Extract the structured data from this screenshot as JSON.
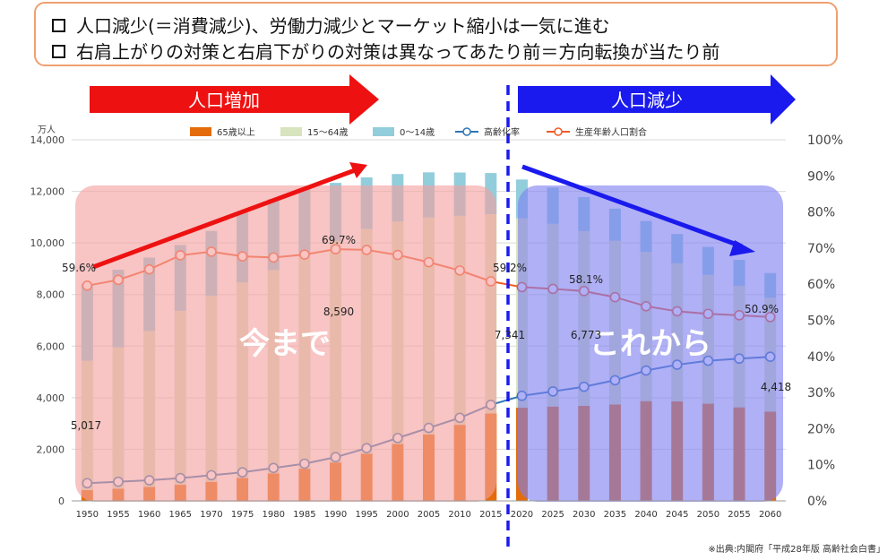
{
  "headline": {
    "line1": "人口減少(＝消費減少)、労働力減少とマーケット縮小は一気に進む",
    "line2": "右肩上がりの対策と右肩下がりの対策は異なってあたり前＝方向転換が当たり前"
  },
  "arrows": {
    "increase_label": "人口増加",
    "decrease_label": "人口減少",
    "increase_color": "#ee1111",
    "decrease_color": "#1a1aee"
  },
  "overlays": {
    "past_label": "今まで",
    "future_label": "これから",
    "past_color": "#f4a0a0",
    "future_color": "#8080f0"
  },
  "source": "※出典:内閣府「平成28年版 高齢社会白書」",
  "chart_data": {
    "type": "bar",
    "stacked": true,
    "y_unit_label": "万人",
    "categories": [
      "1950",
      "1955",
      "1960",
      "1965",
      "1970",
      "1975",
      "1980",
      "1985",
      "1990",
      "1995",
      "2000",
      "2005",
      "2010",
      "2015",
      "2020",
      "2025",
      "2030",
      "2035",
      "2040",
      "2045",
      "2050",
      "2055",
      "2060"
    ],
    "ylim": [
      0,
      14000
    ],
    "yticks": [
      "0",
      "2,000",
      "4,000",
      "6,000",
      "8,000",
      "10,000",
      "12,000",
      "14,000"
    ],
    "y2lim": [
      0,
      100
    ],
    "y2ticks": [
      "0%",
      "10%",
      "20%",
      "30%",
      "40%",
      "50%",
      "60%",
      "70%",
      "80%",
      "90%",
      "100%"
    ],
    "legend_position": "top",
    "series": [
      {
        "name": "65歳以上",
        "type": "bar",
        "color": "#e46c0a",
        "values": [
          416,
          475,
          540,
          624,
          739,
          887,
          1065,
          1247,
          1489,
          1826,
          2204,
          2576,
          2948,
          3387,
          3612,
          3657,
          3685,
          3741,
          3868,
          3856,
          3768,
          3626,
          3464
        ]
      },
      {
        "name": "15〜64歳",
        "type": "bar",
        "color": "#d7e4bd",
        "values": [
          5017,
          5473,
          6047,
          6744,
          7212,
          7581,
          7883,
          8251,
          8590,
          8716,
          8622,
          8409,
          8103,
          7728,
          7341,
          7085,
          6773,
          6343,
          5787,
          5353,
          5001,
          4706,
          4418
        ]
      },
      {
        "name": "0〜14歳",
        "type": "bar",
        "color": "#92cddc",
        "values": [
          2979,
          3012,
          2843,
          2553,
          2515,
          2722,
          2751,
          2603,
          2249,
          2001,
          1847,
          1752,
          1680,
          1595,
          1507,
          1407,
          1321,
          1246,
          1194,
          1138,
          1077,
          1012,
          951
        ]
      },
      {
        "name": "高齢化率",
        "type": "line",
        "axis": "right",
        "color": "#2e75b6",
        "values": [
          4.9,
          5.3,
          5.7,
          6.3,
          7.1,
          7.9,
          9.1,
          10.3,
          12.1,
          14.6,
          17.4,
          20.2,
          23.0,
          26.6,
          29.1,
          30.3,
          31.6,
          33.4,
          36.1,
          37.7,
          38.8,
          39.4,
          39.9
        ]
      },
      {
        "name": "生産年齢人口割合",
        "type": "line",
        "axis": "right",
        "color": "#f05a28",
        "values": [
          59.6,
          61.2,
          64.1,
          68.0,
          69.0,
          67.7,
          67.4,
          68.2,
          69.7,
          69.5,
          68.1,
          66.1,
          63.8,
          60.8,
          59.2,
          58.7,
          58.1,
          56.4,
          53.9,
          52.5,
          51.8,
          51.4,
          50.9
        ]
      }
    ],
    "annotations": [
      "59.6%",
      "69.7%",
      "59.2%",
      "58.1%",
      "50.9%",
      "8,590",
      "7,341",
      "6,773",
      "5,017",
      "4,418"
    ]
  }
}
